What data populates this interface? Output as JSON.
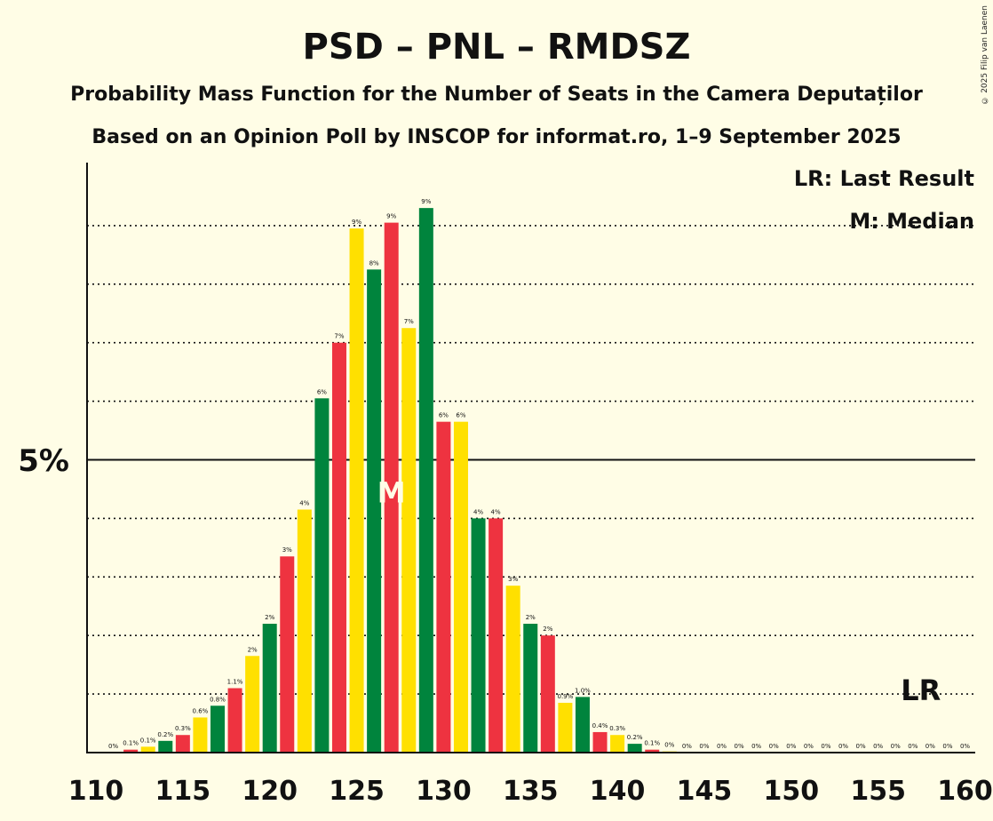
{
  "title": "PSD – PNL – RMDSZ",
  "subtitle1": "Probability Mass Function for the Number of Seats in the Camera Deputaților",
  "subtitle2": "Based on an Opinion Poll by INSCOP for informat.ro, 1–9 September 2025",
  "copyright": "© 2025 Filip van Laenen",
  "legend": {
    "lr": "LR: Last Result",
    "median": "M: Median"
  },
  "markers": {
    "median_label": "M",
    "median_seat": 127,
    "lr_label": "LR",
    "lr_seat": 157
  },
  "colors": {
    "green": "#00843D",
    "red": "#EE3340",
    "yellow": "#FFE000",
    "background": "#FFFDE6"
  },
  "chart_data": {
    "type": "bar",
    "xlim": [
      110,
      160
    ],
    "ylim": [
      0,
      10
    ],
    "y_tick_label": "5%",
    "x_ticks": [
      110,
      115,
      120,
      125,
      130,
      135,
      140,
      145,
      150,
      155,
      160
    ],
    "gridlines": [
      1,
      2,
      3,
      4,
      5,
      6,
      7,
      8,
      9
    ],
    "x": [
      111,
      112,
      113,
      114,
      115,
      116,
      117,
      118,
      119,
      120,
      121,
      122,
      123,
      124,
      125,
      126,
      127,
      128,
      129,
      130,
      131,
      132,
      133,
      134,
      135,
      136,
      137,
      138,
      139,
      140,
      141,
      142,
      143,
      144,
      145,
      146,
      147,
      148,
      149,
      150,
      151,
      152,
      153,
      154,
      155,
      156,
      157,
      158,
      159,
      160
    ],
    "values": [
      0,
      0.05,
      0.1,
      0.2,
      0.3,
      0.6,
      0.8,
      1.1,
      1.65,
      2.2,
      3.35,
      4.15,
      6.05,
      7.0,
      8.95,
      8.25,
      9.05,
      7.25,
      9.3,
      5.65,
      5.65,
      4.0,
      4.0,
      2.85,
      2.2,
      2.0,
      0.85,
      0.95,
      0.35,
      0.3,
      0.15,
      0.05,
      0.02,
      0,
      0,
      0,
      0,
      0,
      0,
      0,
      0,
      0,
      0,
      0,
      0,
      0,
      0,
      0,
      0,
      0
    ],
    "labels": [
      "0%",
      "0.1%",
      "0.1%",
      "0.2%",
      "0.3%",
      "0.6%",
      "0.8%",
      "1.1%",
      "2%",
      "2%",
      "3%",
      "4%",
      "6%",
      "7%",
      "9%",
      "8%",
      "9%",
      "7%",
      "9%",
      "6%",
      "6%",
      "4%",
      "4%",
      "3%",
      "2%",
      "2%",
      "0.9%",
      "1.0%",
      "0.4%",
      "0.3%",
      "0.2%",
      "0.1%",
      "0%",
      "0%",
      "0%",
      "0%",
      "0%",
      "0%",
      "0%",
      "0%",
      "0%",
      "0%",
      "0%",
      "0%",
      "0%",
      "0%",
      "0%",
      "0%",
      "0%",
      "0%"
    ],
    "color_cycle": [
      "yellow",
      "green",
      "red"
    ]
  }
}
